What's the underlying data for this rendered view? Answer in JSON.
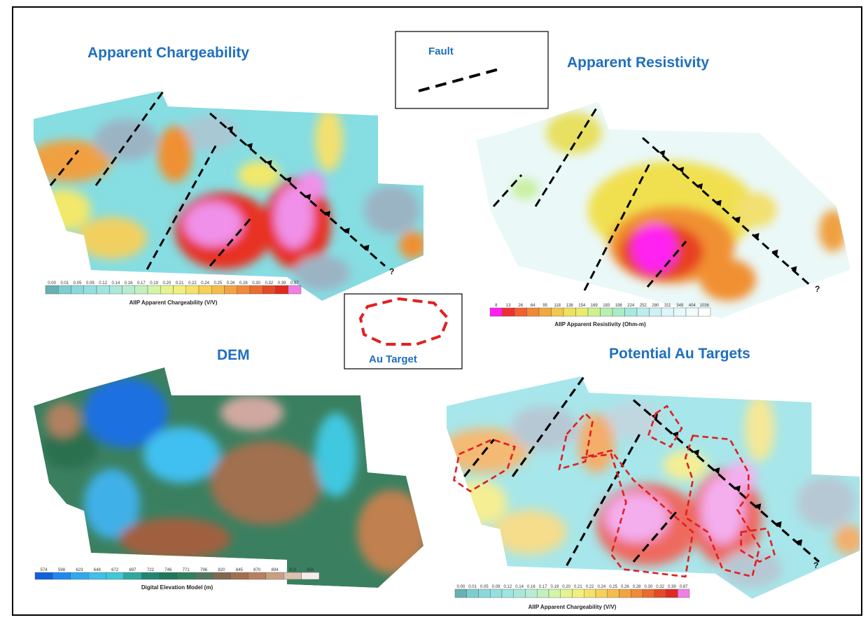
{
  "panels": [
    {
      "title": "Apparent Chargeability",
      "fault_end_label": "?",
      "colorbar": {
        "ticks": [
          "0.00",
          "0.01",
          "0.05",
          "0.09",
          "0.12",
          "0.14",
          "0.16",
          "0.17",
          "0.19",
          "0.20",
          "0.21",
          "0.22",
          "0.24",
          "0.25",
          "0.26",
          "0.28",
          "0.30",
          "0.32",
          "0.39",
          "0.87"
        ],
        "label": "AIIP Apparent Chargeability (V/V)"
      }
    },
    {
      "title": "Apparent Resistivity",
      "fault_end_label": "?",
      "colorbar": {
        "ticks": [
          "8",
          "13",
          "26",
          "64",
          "95",
          "118",
          "138",
          "154",
          "169",
          "183",
          "198",
          "224",
          "252",
          "280",
          "311",
          "349",
          "404",
          "1036"
        ],
        "label": "AIIP Apparent Resistivity (Ohm-m)"
      }
    },
    {
      "title": "DEM",
      "colorbar": {
        "ticks": [
          "574",
          "598",
          "623",
          "648",
          "672",
          "697",
          "722",
          "746",
          "771",
          "796",
          "820",
          "845",
          "870",
          "894",
          "919",
          "956"
        ],
        "label": "Digital Elevation Model (m)"
      }
    },
    {
      "title": "Potential Au Targets",
      "fault_end_label": "?",
      "colorbar": {
        "ticks": [
          "0.00",
          "0.01",
          "0.05",
          "0.09",
          "0.12",
          "0.14",
          "0.16",
          "0.17",
          "0.19",
          "0.20",
          "0.21",
          "0.22",
          "0.24",
          "0.25",
          "0.26",
          "0.28",
          "0.30",
          "0.32",
          "0.39",
          "0.87"
        ],
        "label": "AIIP Apparent Chargeability (V/V)"
      }
    }
  ],
  "legend": {
    "fault": "Fault",
    "au_target": "Au Target"
  }
}
